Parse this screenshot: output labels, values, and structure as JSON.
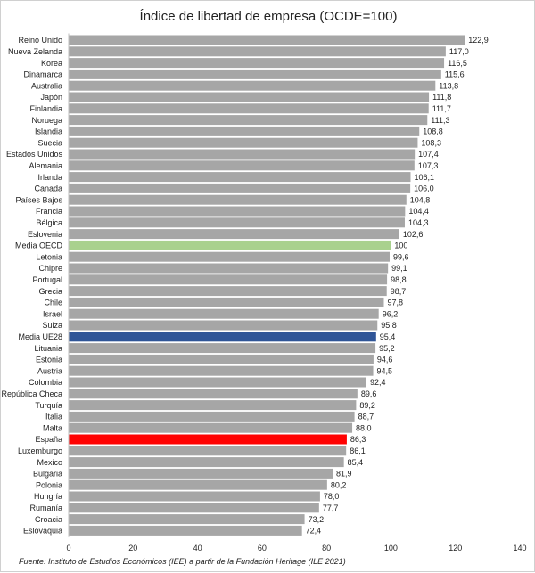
{
  "chart_data": {
    "type": "bar",
    "orientation": "horizontal",
    "title": "Índice de libertad de empresa (OCDE=100)",
    "source": "Fuente: Instituto de Estudios Económicos (IEE) a partir de la Fundación Heritage (ILE 2021)",
    "xlim": [
      0,
      140
    ],
    "xticks": [
      "0",
      "20",
      "40",
      "60",
      "80",
      "100",
      "120",
      "140"
    ],
    "grid": false,
    "colors": {
      "default": "#a6a6a6",
      "Media OECD": "#a9d18e",
      "Media UE28": "#2f5597",
      "España": "#ff0000"
    },
    "categories": [
      "Reino Unido",
      "Nueva Zelanda",
      "Korea",
      "Dinamarca",
      "Australia",
      "Japón",
      "Finlandia",
      "Noruega",
      "Islandia",
      "Suecia",
      "Estados Unidos",
      "Alemania",
      "Irlanda",
      "Canada",
      "Países Bajos",
      "Francia",
      "Bélgica",
      "Eslovenia",
      "Media OECD",
      "Letonia",
      "Chipre",
      "Portugal",
      "Grecia",
      "Chile",
      "Israel",
      "Suiza",
      "Media UE28",
      "Lituania",
      "Estonia",
      "Austria",
      "Colombia",
      "República Checa",
      "Turquía",
      "Italia",
      "Malta",
      "España",
      "Luxemburgo",
      "Mexico",
      "Bulgaria",
      "Polonia",
      "Hungría",
      "Rumanía",
      "Croacia",
      "Eslovaquia"
    ],
    "values": [
      122.9,
      117.0,
      116.5,
      115.6,
      113.8,
      111.8,
      111.7,
      111.3,
      108.8,
      108.3,
      107.4,
      107.3,
      106.1,
      106.0,
      104.8,
      104.4,
      104.3,
      102.6,
      100,
      99.6,
      99.1,
      98.8,
      98.7,
      97.8,
      96.2,
      95.8,
      95.4,
      95.2,
      94.6,
      94.5,
      92.4,
      89.6,
      89.2,
      88.7,
      88.0,
      86.3,
      86.1,
      85.4,
      81.9,
      80.2,
      78.0,
      77.7,
      73.2,
      72.4
    ],
    "value_labels": [
      "122,9",
      "117,0",
      "116,5",
      "115,6",
      "113,8",
      "111,8",
      "111,7",
      "111,3",
      "108,8",
      "108,3",
      "107,4",
      "107,3",
      "106,1",
      "106,0",
      "104,8",
      "104,4",
      "104,3",
      "102,6",
      "100",
      "99,6",
      "99,1",
      "98,8",
      "98,7",
      "97,8",
      "96,2",
      "95,8",
      "95,4",
      "95,2",
      "94,6",
      "94,5",
      "92,4",
      "89,6",
      "89,2",
      "88,7",
      "88,0",
      "86,3",
      "86,1",
      "85,4",
      "81,9",
      "80,2",
      "78,0",
      "77,7",
      "73,2",
      "72,4"
    ]
  }
}
